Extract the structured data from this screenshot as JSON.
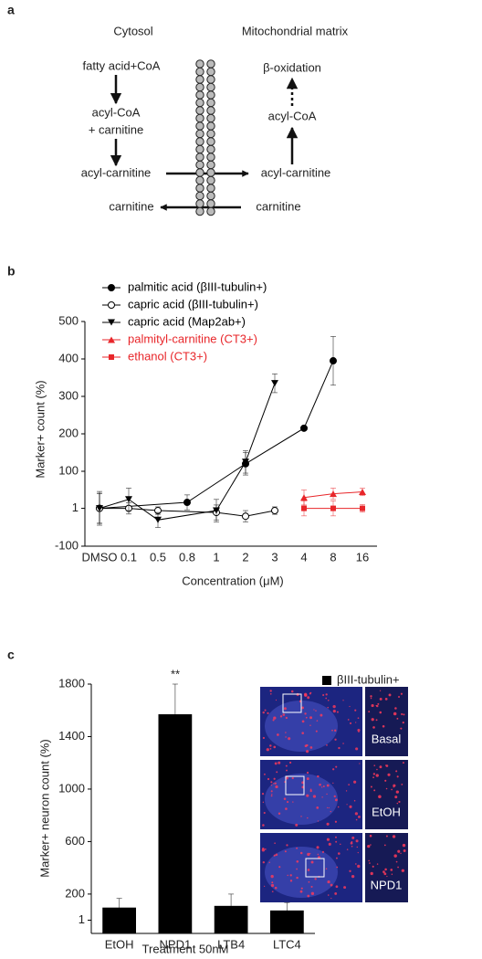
{
  "panel_labels": [
    "a",
    "b",
    "c"
  ],
  "diagram": {
    "headers": [
      "Cytosol",
      "Mitochondrial matrix"
    ],
    "cytosol": [
      "fatty acid+CoA",
      "acyl-CoA",
      "+ carnitine",
      "acyl-carnitine",
      "carnitine"
    ],
    "matrix": [
      "β-oxidation",
      "acyl-CoA",
      "acyl-carnitine",
      "carnitine"
    ]
  },
  "chart_data": [
    {
      "type": "line",
      "x_label": "Concentration (μM)",
      "y_label": "Marker+ count (%)",
      "categories": [
        "DMSO",
        "0.1",
        "0.5",
        "0.8",
        "1",
        "2",
        "3",
        "4",
        "8",
        "16"
      ],
      "ylim": [
        -100,
        500
      ],
      "yticks": [
        -100,
        1,
        100,
        200,
        300,
        400,
        500
      ],
      "series": [
        {
          "name": "palmitic acid (βIII-tubulin+)",
          "color": "#000000",
          "marker": "circle",
          "x": [
            "DMSO",
            "0.8",
            "2",
            "4",
            "8"
          ],
          "values": [
            1,
            17,
            120,
            215,
            395
          ],
          "errors": [
            45,
            20,
            30,
            5,
            65
          ]
        },
        {
          "name": "capric acid (βIII-tubulin+)",
          "color": "#000000",
          "marker": "circle-open",
          "x": [
            "DMSO",
            "0.1",
            "0.5",
            "1",
            "2",
            "3"
          ],
          "values": [
            1,
            1,
            -5,
            -10,
            -20,
            -5
          ],
          "errors": [
            40,
            15,
            10,
            20,
            15,
            10
          ]
        },
        {
          "name": "capric acid (Map2ab+)",
          "color": "#000000",
          "marker": "triangle-down",
          "x": [
            "DMSO",
            "0.1",
            "0.5",
            "1",
            "2",
            "3"
          ],
          "values": [
            1,
            25,
            -30,
            -5,
            125,
            335
          ],
          "errors": [
            40,
            30,
            20,
            30,
            30,
            25
          ]
        },
        {
          "name": "palmityl-carnitine (CT3+)",
          "color": "#e8262a",
          "marker": "triangle-up",
          "x": [
            "4",
            "8",
            "16"
          ],
          "values": [
            30,
            40,
            45
          ],
          "errors": [
            20,
            15,
            10
          ]
        },
        {
          "name": "ethanol (CT3+)",
          "color": "#e8262a",
          "marker": "square",
          "x": [
            "4",
            "8",
            "16"
          ],
          "values": [
            1,
            1,
            1
          ],
          "errors": [
            20,
            20,
            10
          ]
        }
      ]
    },
    {
      "type": "bar",
      "x_label": "Treatment 50nM",
      "y_label": "Marker+ neuron count (%)",
      "annotation": "**",
      "categories": [
        "EtOH",
        "NPD1",
        "LTB4",
        "LTC4"
      ],
      "ylim": [
        -100,
        1800
      ],
      "yticks": [
        1,
        200,
        600,
        1000,
        1400,
        1800
      ],
      "series": [
        {
          "name": "βIII-tubulin+",
          "color": "#000000",
          "values": [
            97,
            1570,
            110,
            75
          ],
          "errors": [
            70,
            230,
            90,
            60
          ]
        }
      ]
    }
  ],
  "images": {
    "labels": [
      "Basal",
      "EtOH",
      "NPD1"
    ]
  }
}
